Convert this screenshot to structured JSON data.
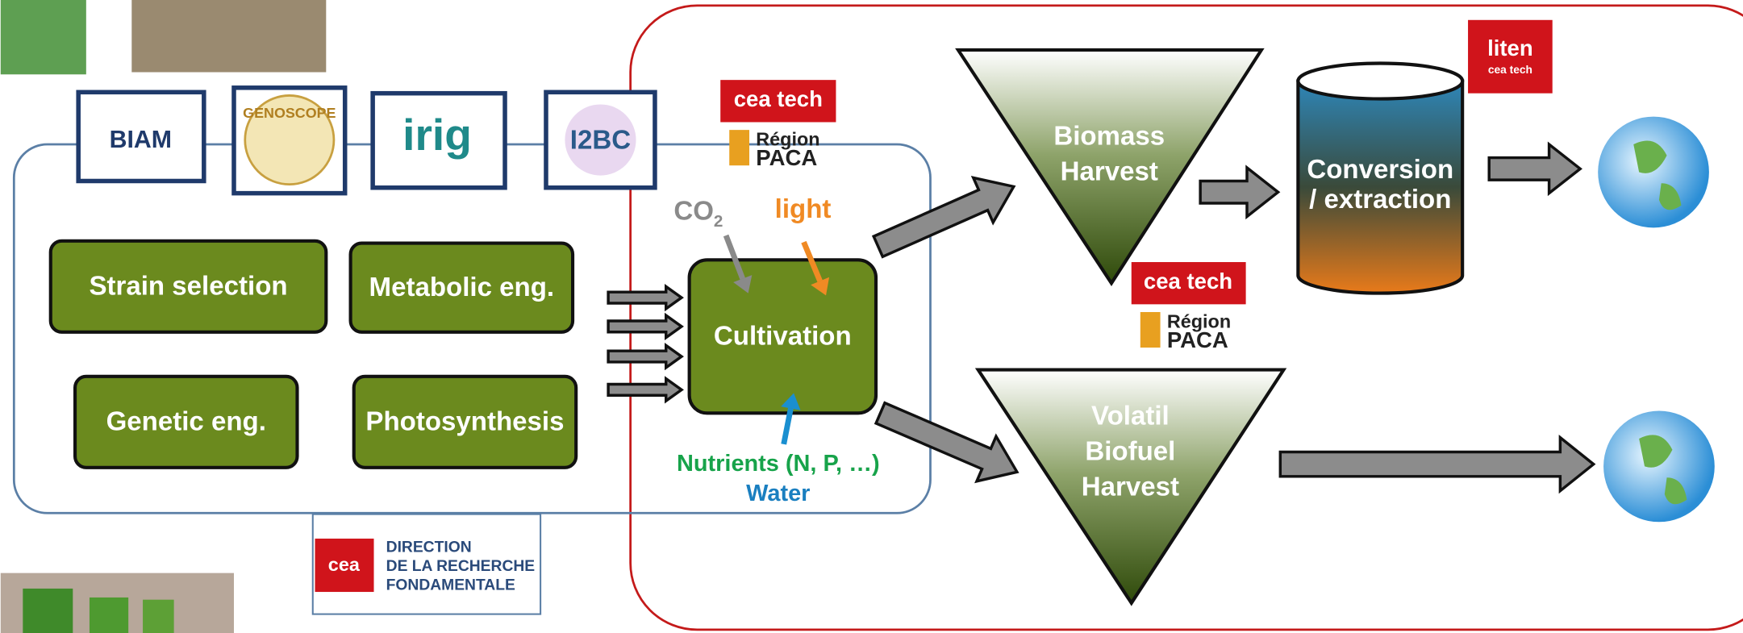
{
  "logos": {
    "biam": "BIAM",
    "genoscope": "GENOSCOPE",
    "irig": "irig",
    "i2bc": "I2BC",
    "ceatech": "cea tech",
    "region": "Région",
    "paca": "PACA",
    "liten": "liten",
    "liten_sub": "cea tech",
    "cea": "cea",
    "drf": [
      "DIRECTION",
      "DE LA RECHERCHE",
      "FONDAMENTALE"
    ]
  },
  "research": [
    "Strain selection",
    "Metabolic eng.",
    "Genetic eng.",
    "Photosynthesis"
  ],
  "cultivation": {
    "label": "Cultivation",
    "co2": "CO",
    "co2_sub": "2",
    "light": "light",
    "nutrients": "Nutrients (N, P, …)",
    "water": "Water"
  },
  "harvest": {
    "biomass": [
      "Biomass",
      "Harvest"
    ],
    "volatil": [
      "Volatil",
      "Biofuel",
      "Harvest"
    ]
  },
  "conversion": [
    "Conversion",
    "/ extraction"
  ]
}
